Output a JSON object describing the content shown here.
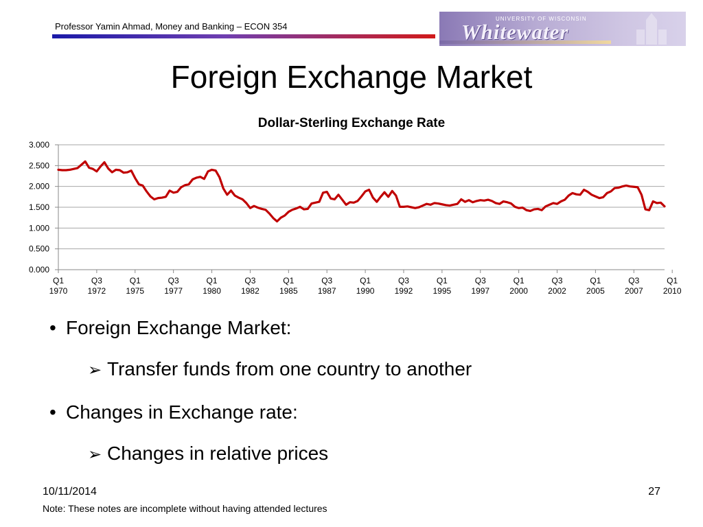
{
  "header": {
    "text": "Professor Yamin Ahmad, Money and Banking – ECON 354",
    "logo_small": "UNIVERSITY OF WISCONSIN",
    "logo_script": "Whitewater"
  },
  "slide_title": "Foreign Exchange Market",
  "bullets": [
    {
      "level": 1,
      "marker": "•",
      "text": "Foreign Exchange Market:"
    },
    {
      "level": 2,
      "marker": "➢",
      "text": "Transfer funds from one country to another"
    },
    {
      "level": 1,
      "marker": "•",
      "text": "Changes in Exchange rate:"
    },
    {
      "level": 2,
      "marker": "➢",
      "text": "Changes in relative prices"
    }
  ],
  "footer": {
    "date": "10/11/2014",
    "page": "27",
    "note": "Note: These notes are incomplete without having attended lectures"
  },
  "chart_data": {
    "type": "line",
    "title": "Dollar-Sterling Exchange Rate",
    "xlabel": "",
    "ylabel": "",
    "ylim": [
      0,
      3
    ],
    "yticks": [
      "0.000",
      "0.500",
      "1.000",
      "1.500",
      "2.000",
      "2.500",
      "3.000"
    ],
    "grid": true,
    "line_color": "#c00000",
    "x_tick_labels": [
      {
        "q": "Q1",
        "y": "1970"
      },
      {
        "q": "Q3",
        "y": "1972"
      },
      {
        "q": "Q1",
        "y": "1975"
      },
      {
        "q": "Q3",
        "y": "1977"
      },
      {
        "q": "Q1",
        "y": "1980"
      },
      {
        "q": "Q3",
        "y": "1982"
      },
      {
        "q": "Q1",
        "y": "1985"
      },
      {
        "q": "Q3",
        "y": "1987"
      },
      {
        "q": "Q1",
        "y": "1990"
      },
      {
        "q": "Q3",
        "y": "1992"
      },
      {
        "q": "Q1",
        "y": "1995"
      },
      {
        "q": "Q3",
        "y": "1997"
      },
      {
        "q": "Q1",
        "y": "2000"
      },
      {
        "q": "Q3",
        "y": "2002"
      },
      {
        "q": "Q1",
        "y": "2005"
      },
      {
        "q": "Q3",
        "y": "2007"
      },
      {
        "q": "Q1",
        "y": "2010"
      }
    ],
    "x_start": "1970 Q1",
    "frequency": "quarterly",
    "series": [
      {
        "values": [
          2.4,
          2.39,
          2.39,
          2.4,
          2.42,
          2.44,
          2.52,
          2.6,
          2.45,
          2.42,
          2.36,
          2.48,
          2.58,
          2.43,
          2.34,
          2.4,
          2.39,
          2.33,
          2.34,
          2.38,
          2.2,
          2.05,
          2.02,
          1.88,
          1.76,
          1.69,
          1.72,
          1.73,
          1.75,
          1.9,
          1.85,
          1.87,
          1.98,
          2.03,
          2.05,
          2.17,
          2.21,
          2.23,
          2.18,
          2.36,
          2.4,
          2.38,
          2.22,
          1.95,
          1.8,
          1.9,
          1.78,
          1.73,
          1.69,
          1.6,
          1.48,
          1.53,
          1.49,
          1.46,
          1.44,
          1.35,
          1.24,
          1.16,
          1.25,
          1.3,
          1.39,
          1.44,
          1.47,
          1.51,
          1.45,
          1.46,
          1.59,
          1.61,
          1.63,
          1.85,
          1.87,
          1.71,
          1.69,
          1.8,
          1.68,
          1.56,
          1.62,
          1.61,
          1.65,
          1.76,
          1.88,
          1.92,
          1.73,
          1.63,
          1.75,
          1.86,
          1.75,
          1.89,
          1.78,
          1.51,
          1.51,
          1.52,
          1.5,
          1.48,
          1.5,
          1.54,
          1.58,
          1.56,
          1.6,
          1.59,
          1.57,
          1.55,
          1.54,
          1.56,
          1.58,
          1.69,
          1.63,
          1.67,
          1.62,
          1.65,
          1.67,
          1.66,
          1.68,
          1.65,
          1.6,
          1.58,
          1.64,
          1.62,
          1.59,
          1.51,
          1.48,
          1.49,
          1.43,
          1.41,
          1.45,
          1.46,
          1.43,
          1.52,
          1.56,
          1.6,
          1.58,
          1.64,
          1.68,
          1.78,
          1.84,
          1.81,
          1.8,
          1.92,
          1.87,
          1.8,
          1.76,
          1.72,
          1.74,
          1.84,
          1.88,
          1.96,
          1.97,
          2.0,
          2.02,
          2.0,
          1.99,
          1.98,
          1.8,
          1.45,
          1.43,
          1.64,
          1.6,
          1.61,
          1.52
        ]
      }
    ]
  }
}
